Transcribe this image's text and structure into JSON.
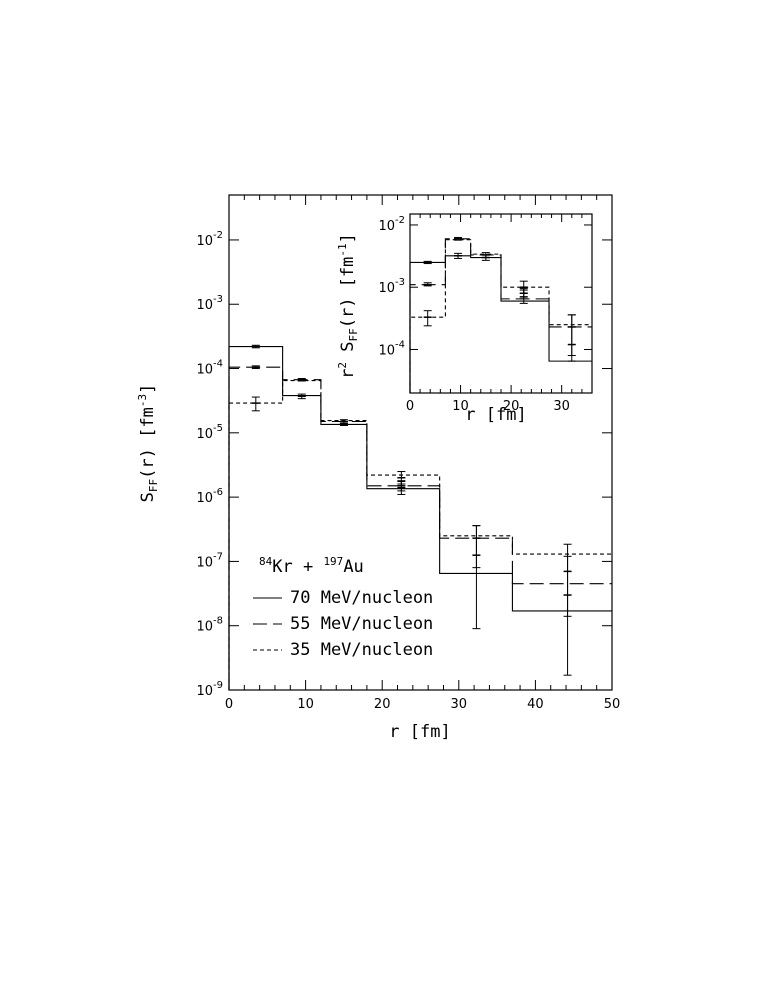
{
  "chart_data": [
    {
      "type": "step",
      "xlabel": "r [fm]",
      "ylabel": "S",
      "ylabel_sub": "FF",
      "ylabel_tail": "(r) [fm",
      "ylabel_exp": "-3",
      "ylabel_close": "]",
      "xlim": [
        0,
        50
      ],
      "ylim": [
        1e-09,
        0.05
      ],
      "yscale": "log",
      "x_ticks": [
        "0",
        "10",
        "20",
        "30",
        "40",
        "50"
      ],
      "y_ticks": [
        {
          "base": "10",
          "exp": "-2",
          "value": 0.01
        },
        {
          "base": "10",
          "exp": "-3",
          "value": 0.001
        },
        {
          "base": "10",
          "exp": "-4",
          "value": 0.0001
        },
        {
          "base": "10",
          "exp": "-5",
          "value": 1e-05
        },
        {
          "base": "10",
          "exp": "-6",
          "value": 1e-06
        },
        {
          "base": "10",
          "exp": "-7",
          "value": 1e-07
        },
        {
          "base": "10",
          "exp": "-8",
          "value": 1e-08
        },
        {
          "base": "10",
          "exp": "-9",
          "value": 1e-09
        }
      ],
      "annotation": {
        "sup1": "84",
        "t1": "Kr + ",
        "sup2": "197",
        "t2": "Au"
      },
      "legend_position": "lower-left",
      "bin_edges": [
        0,
        7,
        12,
        18,
        27.5,
        37,
        50
      ],
      "series": [
        {
          "name": "70 MeV/nucleon",
          "style": "solid",
          "values": [
            0.00022,
            3.8e-05,
            1.35e-05,
            1.35e-06,
            6.5e-08,
            1.7e-08
          ],
          "points": [
            {
              "x": 3.5,
              "y": 0.00022,
              "lo": 0.00021,
              "hi": 0.00023
            },
            {
              "x": 9.5,
              "y": 3.7e-05,
              "lo": 3.4e-05,
              "hi": 4e-05
            },
            {
              "x": 15,
              "y": 1.4e-05,
              "lo": 1.3e-05,
              "hi": 1.5e-05
            },
            {
              "x": 22.5,
              "y": 1.4e-06,
              "lo": 1.1e-06,
              "hi": 1.75e-06
            },
            {
              "x": 32.3,
              "y": 1.25e-07,
              "lo": 9e-09,
              "hi": 3.6e-07
            },
            {
              "x": 44.2,
              "y": 3e-08,
              "lo": 1.7e-09,
              "hi": 1.85e-07
            }
          ]
        },
        {
          "name": "55 MeV/nucleon",
          "style": "dashed",
          "values": [
            0.000105,
            6.7e-05,
            1.5e-05,
            1.5e-06,
            2.3e-07,
            4.5e-08
          ],
          "points": [
            {
              "x": 3.5,
              "y": 0.000105,
              "lo": 0.0001,
              "hi": 0.00011
            },
            {
              "x": 9.5,
              "y": 6.7e-05,
              "lo": 6.4e-05,
              "hi": 7e-05
            },
            {
              "x": 15,
              "y": 1.5e-05,
              "lo": 1.4e-05,
              "hi": 1.6e-05
            },
            {
              "x": 22.5,
              "y": 1.5e-06,
              "lo": 1.25e-06,
              "hi": 1.8e-06
            },
            {
              "x": 32.3,
              "y": 2.3e-07,
              "lo": 8e-08,
              "hi": 3.6e-07
            },
            {
              "x": 44.2,
              "y": 7e-08,
              "lo": 1.4e-08,
              "hi": 1.2e-07
            }
          ]
        },
        {
          "name": "35 MeV/nucleon",
          "style": "dotted",
          "values": [
            2.9e-05,
            6.5e-05,
            1.55e-05,
            2.2e-06,
            2.5e-07,
            1.3e-07
          ],
          "points": [
            {
              "x": 3.5,
              "y": 2.9e-05,
              "lo": 2.2e-05,
              "hi": 3.6e-05
            },
            {
              "x": 22.5,
              "y": 2e-06,
              "lo": 1.6e-06,
              "hi": 2.5e-06
            }
          ]
        }
      ]
    },
    {
      "type": "step",
      "xlabel": "r [fm]",
      "ylabel_pre": "r",
      "ylabel_pre_exp": "2",
      "ylabel": " S",
      "ylabel_sub": "FF",
      "ylabel_tail": "(r) [fm",
      "ylabel_exp": "-1",
      "ylabel_close": "]",
      "xlim": [
        0,
        36
      ],
      "ylim": [
        2e-05,
        0.015
      ],
      "yscale": "log",
      "x_ticks": [
        "0",
        "10",
        "20",
        "30"
      ],
      "y_ticks": [
        {
          "base": "10",
          "exp": "-2",
          "value": 0.01
        },
        {
          "base": "10",
          "exp": "-3",
          "value": 0.001
        },
        {
          "base": "10",
          "exp": "-4",
          "value": 0.0001
        }
      ],
      "bin_edges": [
        0,
        7,
        12,
        18,
        27.5,
        36
      ],
      "series": [
        {
          "name": "70 MeV/nucleon",
          "style": "solid",
          "values": [
            0.0025,
            0.0032,
            0.003,
            0.0006,
            6.5e-05
          ],
          "points": [
            {
              "x": 3.5,
              "y": 0.0025,
              "lo": 0.0024,
              "hi": 0.0026
            },
            {
              "x": 9.5,
              "y": 0.0032,
              "lo": 0.0029,
              "hi": 0.0035
            },
            {
              "x": 15,
              "y": 0.003,
              "lo": 0.0027,
              "hi": 0.0033
            },
            {
              "x": 22.5,
              "y": 0.0007,
              "lo": 0.00055,
              "hi": 0.0009
            },
            {
              "x": 32,
              "y": 0.00012,
              "lo": 6.5e-05,
              "hi": 0.00036
            }
          ]
        },
        {
          "name": "55 MeV/nucleon",
          "style": "dashed",
          "values": [
            0.0011,
            0.006,
            0.0033,
            0.00065,
            0.00023
          ],
          "points": [
            {
              "x": 3.5,
              "y": 0.0011,
              "lo": 0.00105,
              "hi": 0.00118
            },
            {
              "x": 9.5,
              "y": 0.006,
              "lo": 0.0057,
              "hi": 0.0063
            },
            {
              "x": 15,
              "y": 0.0033,
              "lo": 0.003,
              "hi": 0.0036
            },
            {
              "x": 22.5,
              "y": 0.0008,
              "lo": 0.00065,
              "hi": 0.00095
            },
            {
              "x": 32,
              "y": 0.00023,
              "lo": 8e-05,
              "hi": 0.00036
            }
          ]
        },
        {
          "name": "35 MeV/nucleon",
          "style": "dotted",
          "values": [
            0.00033,
            0.0058,
            0.0034,
            0.001,
            0.00025
          ],
          "points": [
            {
              "x": 3.5,
              "y": 0.00033,
              "lo": 0.00024,
              "hi": 0.00042
            },
            {
              "x": 22.5,
              "y": 0.001,
              "lo": 0.0008,
              "hi": 0.00125
            }
          ]
        }
      ]
    }
  ]
}
